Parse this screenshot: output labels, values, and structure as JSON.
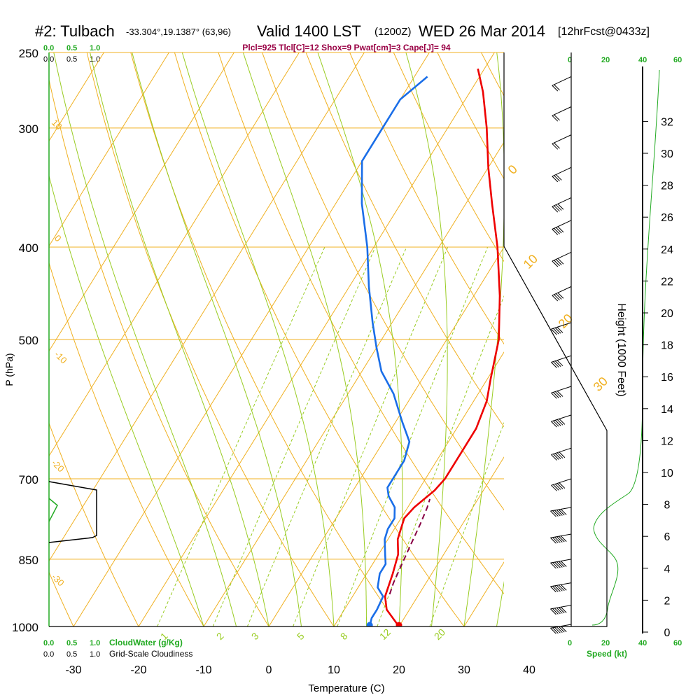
{
  "header": {
    "station": "#2: Tulbach",
    "coords": "-33.304°,19.1387° (63,96)",
    "valid": "Valid 1400 LST",
    "zulu": "(1200Z)",
    "date": "WED 26 Mar 2014",
    "fcst": "[12hrFcst@0433z]",
    "indices": "Plcl=925 Tlcl[C]=12 Shox=9 Pwat[cm]=3 Cape[J]= 94"
  },
  "scales": {
    "cloudwater_top": [
      "0.0",
      "0.5",
      "1.0"
    ],
    "cloudiness_top": [
      "0.0",
      "0.5",
      "1.0"
    ],
    "cloudwater_bottom": [
      "0.0",
      "0.5",
      "1.0"
    ],
    "cloudwater_label": "CloudWater (g/Kg)",
    "cloudiness_bottom": [
      "0.0",
      "0.5",
      "1.0"
    ],
    "cloudiness_label": "Grid-Scale Cloudiness",
    "speed_top_black": [
      "0",
      "40"
    ],
    "speed_top_green": [
      "20",
      "60"
    ],
    "speed_bottom_black": [
      "0",
      "40"
    ],
    "speed_bottom_green": [
      "20",
      "60"
    ],
    "speed_label": "Speed (kt)"
  },
  "colors": {
    "temperature": "#ee0000",
    "dewpoint": "#1a6ee8",
    "parcel": "#880044",
    "isotherm_isobar": "#f0b020",
    "dry_adiabat": "#f0b020",
    "moist_adiabat": "#99cc22",
    "mixing_ratio": "#99cc22",
    "cloudwater": "#22aa22",
    "header_indices": "#990044"
  },
  "chart_data": {
    "type": "line",
    "title": "#2: Tulbach  Valid 1400 LST (1200Z) WED 26 Mar 2014",
    "xlabel": "Temperature (C)",
    "ylabel": "P (hPa)",
    "xlim": [
      -35,
      35
    ],
    "ylim": [
      1000,
      250
    ],
    "y_scale": "log",
    "x_ticks": [
      "-30",
      "-20",
      "-10",
      "0",
      "10",
      "20",
      "30",
      "40"
    ],
    "y_ticks": [
      "250",
      "300",
      "400",
      "500",
      "700",
      "850",
      "1000"
    ],
    "height_axis_label": "Height (1000 Feet)",
    "height_ticks": [
      "0",
      "2",
      "4",
      "6",
      "8",
      "10",
      "12",
      "14",
      "16",
      "18",
      "20",
      "22",
      "24",
      "26",
      "28",
      "30",
      "32"
    ],
    "mixing_ratio_labels": [
      "1",
      "2",
      "3",
      "5",
      "8",
      "12",
      "20"
    ],
    "moist_adiabat_labels": [
      "0",
      "10",
      "20",
      "30"
    ],
    "dry_adiabat_labels": [
      "10",
      "0",
      "-10",
      "-20",
      "-30"
    ],
    "series": [
      {
        "name": "Temperature",
        "points": [
          [
            20,
            1000
          ],
          [
            16.5,
            960
          ],
          [
            15,
            930
          ],
          [
            14,
            880
          ],
          [
            13.5,
            860
          ],
          [
            13,
            840
          ],
          [
            11.5,
            810
          ],
          [
            11,
            790
          ],
          [
            10.5,
            770
          ],
          [
            11,
            750
          ],
          [
            12,
            730
          ],
          [
            12.5,
            720
          ],
          [
            13,
            700
          ],
          [
            13,
            660
          ],
          [
            13,
            620
          ],
          [
            12,
            580
          ],
          [
            10.5,
            550
          ],
          [
            8,
            500
          ],
          [
            4,
            450
          ],
          [
            -1,
            400
          ],
          [
            -6,
            360
          ],
          [
            -10,
            330
          ],
          [
            -14,
            300
          ],
          [
            -18,
            275
          ],
          [
            -21,
            260
          ]
        ]
      },
      {
        "name": "Dewpoint",
        "points": [
          [
            15.5,
            1000
          ],
          [
            15,
            980
          ],
          [
            15,
            960
          ],
          [
            14.7,
            930
          ],
          [
            13,
            910
          ],
          [
            12,
            880
          ],
          [
            12,
            860
          ],
          [
            11,
            840
          ],
          [
            9.5,
            810
          ],
          [
            9,
            790
          ],
          [
            9,
            770
          ],
          [
            8,
            750
          ],
          [
            6,
            730
          ],
          [
            5,
            715
          ],
          [
            5,
            700
          ],
          [
            5,
            670
          ],
          [
            4,
            640
          ],
          [
            1,
            610
          ],
          [
            -3,
            570
          ],
          [
            -7,
            540
          ],
          [
            -10,
            510
          ],
          [
            -13,
            480
          ],
          [
            -17,
            440
          ],
          [
            -21,
            400
          ],
          [
            -26,
            360
          ],
          [
            -30,
            325
          ],
          [
            -30,
            300
          ],
          [
            -30,
            280
          ],
          [
            -28,
            265
          ]
        ]
      },
      {
        "name": "Parcel",
        "points": [
          [
            15.5,
            925
          ],
          [
            15,
            900
          ],
          [
            14.5,
            860
          ],
          [
            14,
            820
          ],
          [
            13.5,
            780
          ],
          [
            13,
            750
          ],
          [
            12.6,
            735
          ]
        ]
      }
    ],
    "surface_temp": 20,
    "surface_dewpoint": 15.5,
    "winds": [
      {
        "p": 265,
        "speed": 10
      },
      {
        "p": 285,
        "speed": 10
      },
      {
        "p": 305,
        "speed": 10
      },
      {
        "p": 330,
        "speed": 15
      },
      {
        "p": 355,
        "speed": 20
      },
      {
        "p": 375,
        "speed": 20
      },
      {
        "p": 405,
        "speed": 20
      },
      {
        "p": 440,
        "speed": 20
      },
      {
        "p": 480,
        "speed": 20
      },
      {
        "p": 520,
        "speed": 20
      },
      {
        "p": 560,
        "speed": 20
      },
      {
        "p": 600,
        "speed": 25
      },
      {
        "p": 650,
        "speed": 25
      },
      {
        "p": 700,
        "speed": 25
      },
      {
        "p": 750,
        "speed": 30
      },
      {
        "p": 800,
        "speed": 30
      },
      {
        "p": 850,
        "speed": 35
      },
      {
        "p": 900,
        "speed": 35
      },
      {
        "p": 950,
        "speed": 35
      },
      {
        "p": 995,
        "speed": 35
      }
    ]
  }
}
